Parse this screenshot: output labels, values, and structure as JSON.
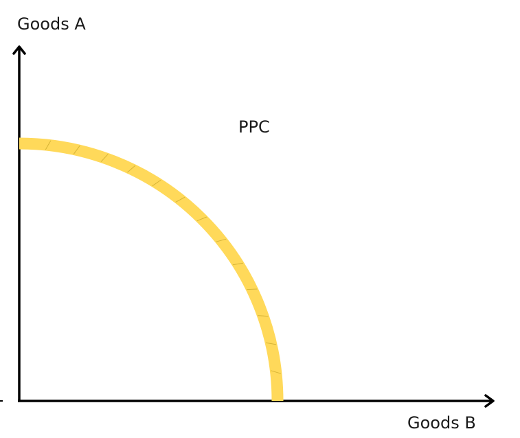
{
  "diagram": {
    "title": "PPC",
    "y_axis_label": "Goods A",
    "x_axis_label": "Goods B",
    "curve_color": "#FFD95A",
    "axis_color": "#000000",
    "curve": "concave production possibility curve from the Goods A axis to the Goods B axis"
  }
}
